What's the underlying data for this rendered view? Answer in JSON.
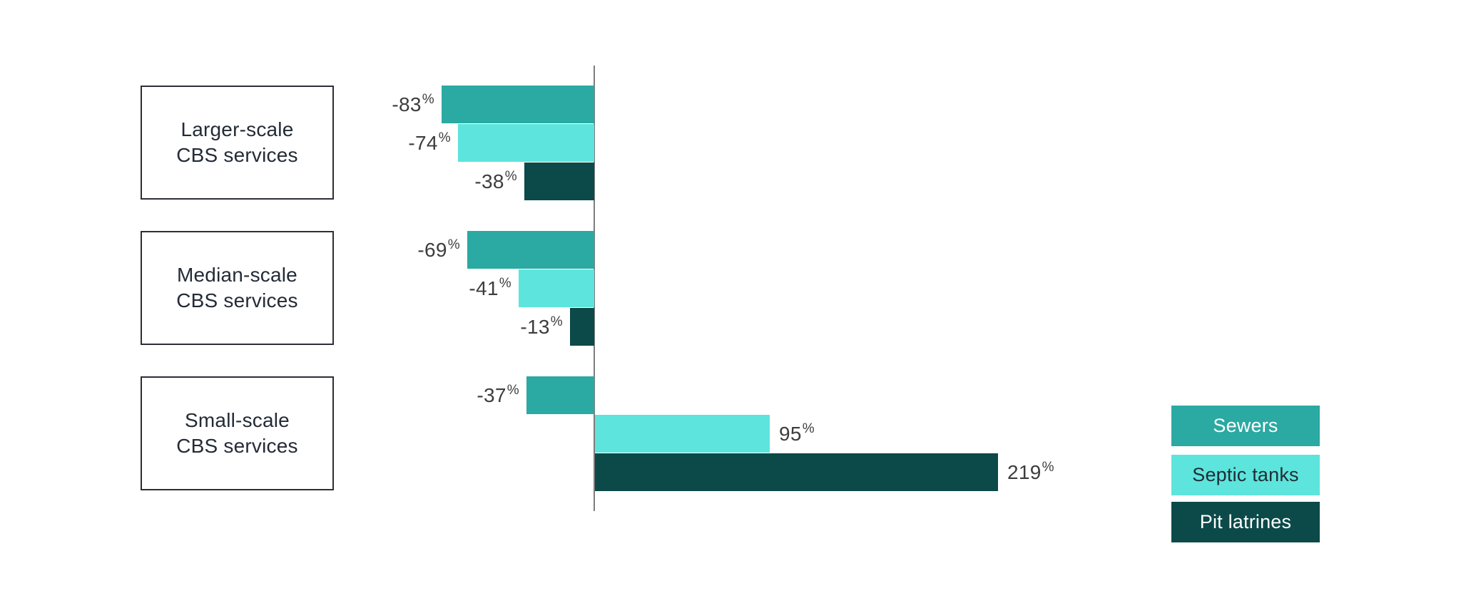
{
  "chart_data": {
    "type": "bar",
    "orientation": "horizontal",
    "title": "",
    "xlabel": "",
    "ylabel": "",
    "unit": "%",
    "xlim": [
      -100,
      250
    ],
    "grid": false,
    "legend_position": "right",
    "categories": [
      {
        "label": "Larger-scale CBS services",
        "label_lines": [
          "Larger-scale",
          "CBS services"
        ]
      },
      {
        "label": "Median-scale CBS services",
        "label_lines": [
          "Median-scale",
          "CBS services"
        ]
      },
      {
        "label": "Small-scale CBS services",
        "label_lines": [
          "Small-scale",
          "CBS services"
        ]
      }
    ],
    "series": [
      {
        "name": "Sewers",
        "color": "#2BA9A3",
        "legend_text_color": "#ffffff",
        "values": [
          -83,
          -69,
          -37
        ]
      },
      {
        "name": "Septic tanks",
        "color": "#5DE4DC",
        "legend_text_color": "#1d2d35",
        "values": [
          -74,
          -41,
          95
        ]
      },
      {
        "name": "Pit latrines",
        "color": "#0B4A49",
        "legend_text_color": "#ffffff",
        "values": [
          -38,
          -13,
          219
        ]
      }
    ],
    "value_labels": [
      [
        "-83%",
        "-74%",
        "-38%"
      ],
      [
        "-69%",
        "-41%",
        "-13%"
      ],
      [
        "-37%",
        "95%",
        "219%"
      ]
    ],
    "colors": {
      "axis_line": "#7d7d7d",
      "value_label_text": "#3d3d3d",
      "category_text": "#232b36",
      "category_border": "#2e2e36",
      "background": "#ffffff"
    }
  }
}
